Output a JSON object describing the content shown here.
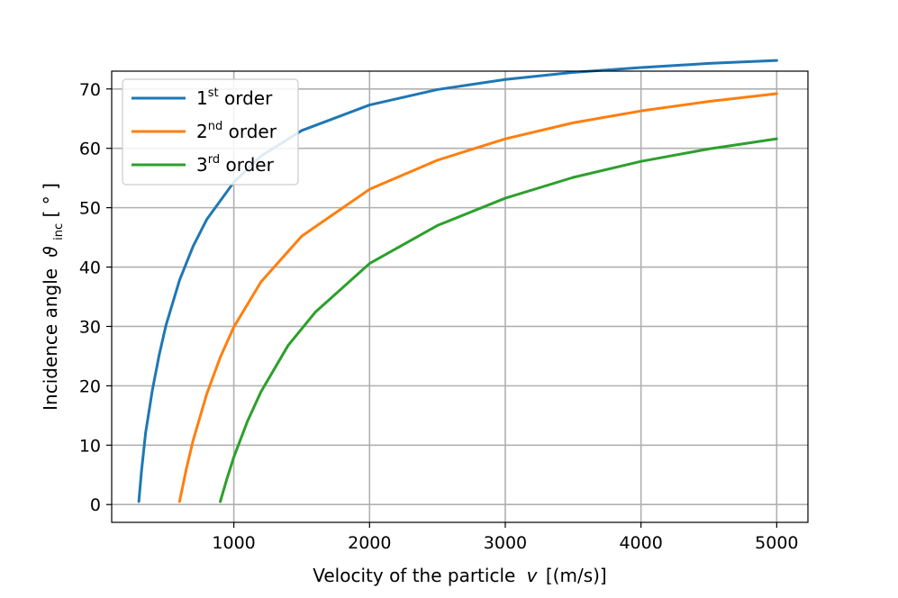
{
  "chart_data": {
    "type": "line",
    "title": "",
    "xlabel": "Velocity of the particle",
    "xlabel_symbol": "v",
    "xlabel_unit": "[(m/s)]",
    "ylabel": "Incidence angle",
    "ylabel_symbol": "ϑ",
    "ylabel_subscript": "inc",
    "ylabel_unit": "[ ° ]",
    "xlim": [
      100,
      5230
    ],
    "ylim": [
      -3,
      73
    ],
    "xticks": [
      1000,
      2000,
      3000,
      4000,
      5000
    ],
    "yticks": [
      0,
      10,
      20,
      30,
      40,
      50,
      60,
      70
    ],
    "grid": true,
    "legend_position": "top-left",
    "series": [
      {
        "name_base": "1",
        "name_sup": "st",
        "name_rest": " order",
        "color": "#1f77b4",
        "x": [
          300,
          320,
          350,
          400,
          450,
          500,
          600,
          700,
          800,
          1000,
          1200,
          1500,
          2000,
          2500,
          3000,
          3500,
          4000,
          4500,
          5000
        ],
        "y": [
          0.5,
          5.7,
          12.1,
          19.3,
          25.2,
          30.2,
          37.8,
          43.5,
          48.0,
          54.3,
          58.7,
          63.0,
          67.3,
          69.9,
          71.6,
          72.8,
          73.6,
          74.3,
          74.8
        ]
      },
      {
        "name_base": "2",
        "name_sup": "nd",
        "name_rest": " order",
        "color": "#ff7f0e",
        "x": [
          600,
          650,
          700,
          800,
          900,
          1000,
          1200,
          1500,
          2000,
          2500,
          3000,
          3500,
          4000,
          4500,
          5000
        ],
        "y": [
          0.5,
          6.0,
          10.8,
          18.6,
          24.8,
          29.9,
          37.5,
          45.2,
          53.1,
          58.0,
          61.6,
          64.3,
          66.3,
          67.9,
          69.2
        ]
      },
      {
        "name_base": "3",
        "name_sup": "rd",
        "name_rest": " order",
        "color": "#2ca02c",
        "x": [
          900,
          950,
          1000,
          1100,
          1200,
          1400,
          1600,
          2000,
          2500,
          3000,
          3500,
          4000,
          4500,
          5000
        ],
        "y": [
          0.5,
          4.4,
          8.0,
          14.0,
          19.0,
          26.8,
          32.4,
          40.6,
          47.0,
          51.6,
          55.1,
          57.8,
          59.9,
          61.6
        ]
      }
    ]
  }
}
